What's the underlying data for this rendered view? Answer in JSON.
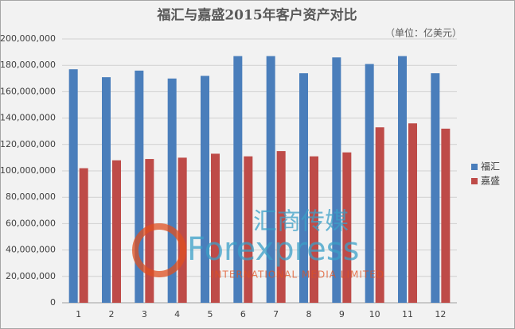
{
  "chart_data": {
    "type": "bar",
    "title": "福汇与嘉盛2015年客户资产对比",
    "subtitle": "（单位：亿美元）",
    "categories": [
      "1",
      "2",
      "3",
      "4",
      "5",
      "6",
      "7",
      "8",
      "9",
      "10",
      "11",
      "12"
    ],
    "series": [
      {
        "name": "福汇",
        "color": "#4a7ebb",
        "values": [
          177000000,
          171000000,
          176000000,
          170000000,
          172000000,
          187000000,
          187000000,
          174000000,
          186000000,
          181000000,
          187000000,
          174000000
        ]
      },
      {
        "name": "嘉盛",
        "color": "#be4b48",
        "values": [
          102000000,
          108000000,
          109000000,
          110000000,
          113000000,
          111000000,
          115000000,
          111000000,
          114000000,
          133000000,
          136000000,
          132000000
        ]
      }
    ],
    "ylim": [
      0,
      200000000
    ],
    "yticks": [
      0,
      {
        "value": 20000000,
        "label": "20,000,000"
      },
      {
        "value": 40000000,
        "label": "40,000,000"
      },
      {
        "value": 60000000,
        "label": "60,000,000"
      },
      {
        "value": 80000000,
        "label": "80,000,000"
      },
      {
        "value": 100000000,
        "label": "100,000,000"
      },
      {
        "value": 120000000,
        "label": "120,000,000"
      },
      {
        "value": 140000000,
        "label": "140,000,000"
      },
      {
        "value": 160000000,
        "label": "160,000,000"
      },
      {
        "value": 180000000,
        "label": "180,000,000"
      },
      {
        "value": 200000000,
        "label": "200,000,000"
      }
    ],
    "grid": true,
    "legend": "right",
    "watermark": {
      "cn": "汇商传媒",
      "en": "Forexpress",
      "sub": "INTERNATIONAL MEDIA LIMITED"
    }
  }
}
